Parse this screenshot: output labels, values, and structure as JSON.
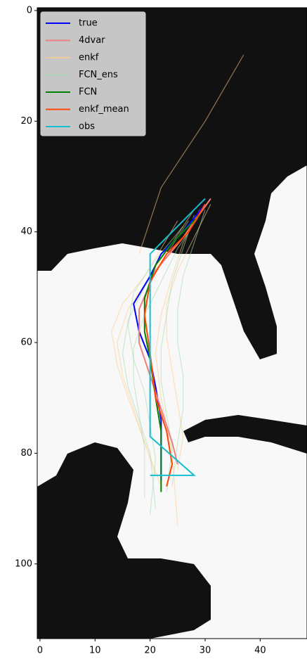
{
  "chart_data": {
    "type": "line",
    "xlim": [
      -0.5,
      48.5
    ],
    "ylim": [
      113.5,
      -0.5
    ],
    "xticks": [
      0,
      10,
      20,
      30,
      40
    ],
    "yticks": [
      0,
      20,
      40,
      60,
      80,
      100
    ],
    "legend": "upper left",
    "series": [
      {
        "name": "true",
        "color": "#0000ff",
        "x": [
          30,
          26,
          22,
          20,
          17,
          18,
          20,
          21,
          22,
          22,
          22
        ],
        "y": [
          35,
          40,
          44,
          48,
          53,
          58,
          63,
          68,
          74,
          80,
          85
        ]
      },
      {
        "name": "4dvar",
        "color": "#f08080",
        "x": [
          31,
          26,
          21,
          18,
          18,
          20,
          22,
          24,
          25
        ],
        "y": [
          34,
          41,
          47,
          54,
          60,
          66,
          72,
          78,
          82
        ]
      },
      {
        "name": "enkf",
        "color": "#ffcc88",
        "members": [
          {
            "x": [
              28,
              24,
              20,
              16,
              14,
              15,
              17,
              19,
              21
            ],
            "y": [
              36,
              42,
              48,
              54,
              60,
              66,
              72,
              78,
              84
            ]
          },
          {
            "x": [
              31,
              28,
              25,
              23,
              23,
              24,
              25,
              26,
              25
            ],
            "y": [
              35,
              41,
              47,
              53,
              59,
              65,
              71,
              77,
              83
            ]
          },
          {
            "x": [
              25,
              22,
              19,
              15,
              13,
              14,
              16,
              19,
              22
            ],
            "y": [
              38,
              43,
              48,
              53,
              58,
              64,
              70,
              78,
              86
            ]
          },
          {
            "x": [
              37,
              30,
              22,
              18
            ],
            "y": [
              8,
              20,
              32,
              44
            ]
          },
          {
            "x": [
              29,
              26,
              24,
              22,
              21,
              22,
              24,
              25
            ],
            "y": [
              36,
              42,
              48,
              55,
              62,
              70,
              80,
              93
            ]
          }
        ]
      },
      {
        "name": "FCN_ens",
        "color": "#a8d8b0",
        "members": [
          {
            "x": [
              29,
              25,
              22,
              19,
              17,
              17,
              18,
              19,
              19
            ],
            "y": [
              37,
              43,
              49,
              55,
              61,
              67,
              73,
              79,
              88
            ]
          },
          {
            "x": [
              30,
              28,
              26,
              25,
              25,
              26,
              26,
              25,
              24
            ],
            "y": [
              36,
              42,
              48,
              54,
              60,
              66,
              72,
              78,
              86
            ]
          },
          {
            "x": [
              27,
              23,
              19,
              16,
              15,
              16,
              18,
              20,
              21
            ],
            "y": [
              38,
              44,
              50,
              56,
              62,
              68,
              74,
              80,
              90
            ]
          },
          {
            "x": [
              28,
              26,
              24,
              23,
              22,
              22,
              23,
              24,
              23
            ],
            "y": [
              37,
              43,
              49,
              55,
              61,
              67,
              73,
              79,
              87
            ]
          },
          {
            "x": [
              26,
              21,
              17,
              16,
              17,
              19,
              20,
              21,
              20
            ],
            "y": [
              39,
              45,
              51,
              57,
              63,
              69,
              75,
              81,
              91
            ]
          }
        ]
      },
      {
        "name": "FCN",
        "color": "#008000",
        "x": [
          29,
          24,
          21,
          19,
          19,
          20,
          21,
          22,
          22,
          22
        ],
        "y": [
          37,
          42,
          46,
          52,
          58,
          63,
          70,
          76,
          82,
          87
        ]
      },
      {
        "name": "enkf_mean",
        "color": "#ff4500",
        "x": [
          30,
          27,
          23,
          20,
          19,
          20,
          21,
          23,
          24,
          23
        ],
        "y": [
          35,
          40,
          44,
          49,
          55,
          62,
          70,
          76,
          82,
          86
        ]
      },
      {
        "name": "obs",
        "color": "#17becf",
        "x": [
          30,
          20,
          20,
          28,
          20
        ],
        "y": [
          34,
          44,
          77,
          84,
          84
        ]
      }
    ]
  }
}
